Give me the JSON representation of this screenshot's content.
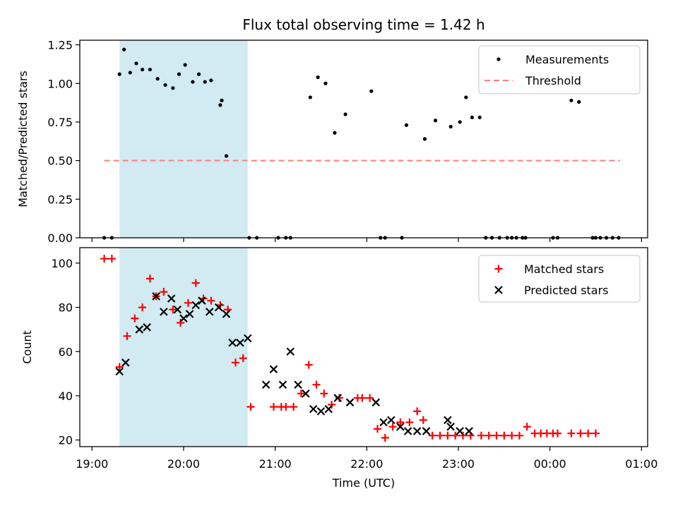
{
  "chart_data": {
    "title": "Flux total observing time = 1.42 h",
    "xlabel": "Time (UTC)",
    "x_ticks": [
      "19:00",
      "20:00",
      "21:00",
      "22:00",
      "23:00",
      "00:00",
      "01:00"
    ],
    "x_tick_values": [
      0,
      60,
      120,
      180,
      240,
      300,
      360
    ],
    "xlim": [
      -8,
      364
    ],
    "shaded_interval": [
      18,
      102
    ],
    "colors": {
      "shade": "#add8e6",
      "matched": "#ff0000",
      "predicted": "#000000",
      "measurement": "#000000",
      "threshold": "#ff7f7f"
    },
    "panels": [
      {
        "type": "scatter",
        "ylabel": "Matched/Predicted stars",
        "ylim": [
          0,
          1.28
        ],
        "y_ticks": [
          "0.00",
          "0.25",
          "0.50",
          "0.75",
          "1.00",
          "1.25"
        ],
        "y_tick_values": [
          0,
          0.25,
          0.5,
          0.75,
          1.0,
          1.25
        ],
        "legend": [
          "Measurements",
          "Threshold"
        ],
        "legend_position": "top-right",
        "threshold": {
          "name": "Threshold",
          "y": 0.5,
          "x_range": [
            8,
            346
          ]
        },
        "series": [
          {
            "name": "Measurements",
            "x": [
              8,
              13,
              18,
              21,
              25,
              29,
              33,
              38,
              43,
              48,
              53,
              57,
              61,
              66,
              70,
              74,
              78,
              84,
              85,
              88,
              103,
              108,
              122,
              127,
              130,
              143,
              148,
              153,
              159,
              166,
              183,
              189,
              192,
              203,
              206,
              218,
              225,
              235,
              241,
              245,
              249,
              254,
              258,
              262,
              267,
              272,
              275,
              278,
              282,
              284,
              302,
              305,
              314,
              319,
              328,
              330,
              333,
              337,
              341,
              345
            ],
            "y": [
              0,
              0,
              1.06,
              1.22,
              1.07,
              1.13,
              1.09,
              1.09,
              1.03,
              0.99,
              0.97,
              1.06,
              1.12,
              1.01,
              1.06,
              1.01,
              1.02,
              0.86,
              0.89,
              0.53,
              0,
              0,
              0,
              0,
              0,
              0.91,
              1.04,
              1.0,
              0.68,
              0.8,
              0.95,
              0,
              0,
              0,
              0.73,
              0.64,
              0.76,
              0.72,
              0.75,
              0.91,
              0.78,
              0.78,
              0,
              0,
              0,
              0,
              0,
              0,
              0,
              0,
              0,
              0,
              0.89,
              0.88,
              0,
              0,
              0,
              0,
              0,
              0
            ]
          }
        ]
      },
      {
        "type": "scatter",
        "ylabel": "Count",
        "ylim": [
          17,
          107
        ],
        "y_ticks": [
          "20",
          "40",
          "60",
          "80",
          "100"
        ],
        "y_tick_values": [
          20,
          40,
          60,
          80,
          100
        ],
        "legend": [
          "Matched stars",
          "Predicted stars"
        ],
        "legend_position": "top-right",
        "series": [
          {
            "name": "Matched stars",
            "marker": "plus",
            "x": [
              8,
              13,
              18,
              23,
              28,
              33,
              38,
              42,
              47,
              53,
              58,
              63,
              68,
              73,
              78,
              84,
              89,
              94,
              99,
              104,
              119,
              124,
              127,
              132,
              137,
              142,
              147,
              152,
              157,
              162,
              174,
              177,
              182,
              187,
              192,
              197,
              202,
              208,
              213,
              217,
              223,
              228,
              233,
              238,
              243,
              248,
              255,
              260,
              265,
              270,
              275,
              280,
              285,
              290,
              294,
              298,
              302,
              305,
              314,
              320,
              325,
              330
            ],
            "y": [
              102,
              102,
              53,
              67,
              75,
              80,
              93,
              85,
              87,
              79,
              73,
              82,
              91,
              84,
              83,
              81,
              79,
              55,
              57,
              35,
              35,
              35,
              35,
              35,
              41,
              54,
              45,
              41,
              36,
              39,
              39,
              39,
              39,
              25,
              21,
              26,
              28,
              28,
              33,
              29,
              22,
              22,
              22,
              22,
              22,
              22,
              22,
              22,
              22,
              22,
              22,
              22,
              26,
              23,
              23,
              23,
              23,
              23,
              23,
              23,
              23,
              23
            ]
          },
          {
            "name": "Predicted stars",
            "marker": "x",
            "x": [
              18,
              22,
              31,
              36,
              42,
              47,
              52,
              56,
              60,
              64,
              68,
              72,
              77,
              83,
              88,
              92,
              97,
              102,
              114,
              119,
              125,
              130,
              135,
              140,
              145,
              150,
              155,
              161,
              169,
              186,
              191,
              196,
              202,
              207,
              213,
              219,
              233,
              235,
              241,
              247
            ],
            "y": [
              51,
              55,
              70,
              71,
              85,
              78,
              84,
              79,
              75,
              77,
              81,
              83,
              78,
              80,
              77,
              64,
              64,
              66,
              45,
              52,
              45,
              60,
              45,
              41,
              34,
              33,
              34,
              39,
              37,
              37,
              28,
              29,
              26,
              24,
              24,
              24,
              29,
              26,
              24,
              24
            ]
          }
        ]
      }
    ]
  }
}
